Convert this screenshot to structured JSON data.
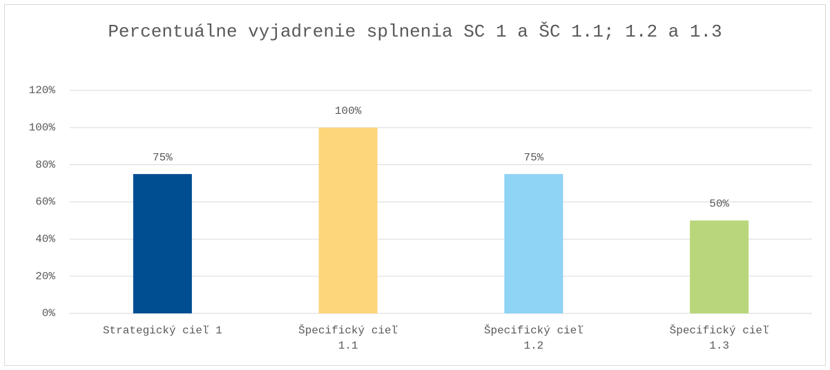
{
  "chart_data": {
    "type": "bar",
    "title": "Percentuálne vyjadrenie splnenia SC 1 a ŠC 1.1; 1.2 a 1.3",
    "categories": [
      "Strategický cieľ 1",
      "Špecifický cieľ 1.1",
      "Špecifický cieľ 1.2",
      "Špecifický cieľ 1.3"
    ],
    "values": [
      75,
      100,
      75,
      50
    ],
    "value_labels": [
      "75%",
      "100%",
      "75%",
      "50%"
    ],
    "colors": [
      "#004e92",
      "#fdd57a",
      "#8fd3f5",
      "#b9d67a"
    ],
    "ylim": [
      0,
      120
    ],
    "yticks": [
      {
        "value": 0,
        "label": "0%"
      },
      {
        "value": 20,
        "label": "20%"
      },
      {
        "value": 40,
        "label": "40%"
      },
      {
        "value": 60,
        "label": "60%"
      },
      {
        "value": 80,
        "label": "80%"
      },
      {
        "value": 100,
        "label": "100%"
      },
      {
        "value": 120,
        "label": "120%"
      }
    ],
    "grid": true
  }
}
